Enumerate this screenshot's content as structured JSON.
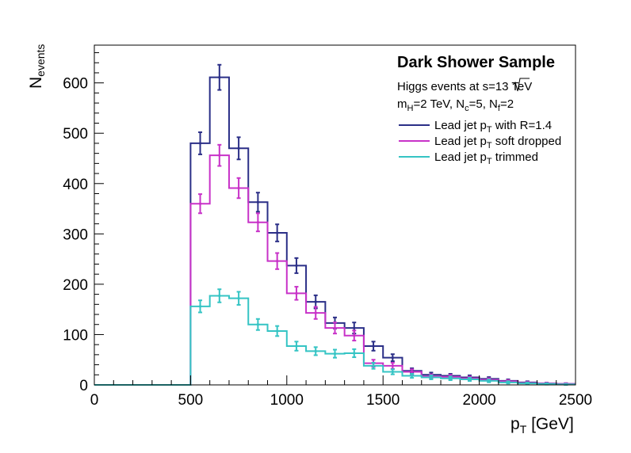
{
  "chart_data": {
    "type": "histogram",
    "title": "",
    "xlabel": {
      "main": "p",
      "sub": "T",
      "unit": " [GeV]"
    },
    "ylabel": {
      "main": "N",
      "sub": "events"
    },
    "xlim": [
      0,
      2500
    ],
    "ylim": [
      0,
      675
    ],
    "xticks": [
      0,
      500,
      1000,
      1500,
      2000,
      2500
    ],
    "yticks": [
      0,
      100,
      200,
      300,
      400,
      500,
      600
    ],
    "grid": false,
    "legend_position": "top-right",
    "legend": {
      "title": "Dark Shower Sample",
      "line1": {
        "pre": "Higgs events at  ",
        "root": "s",
        "post": "=13 TeV"
      },
      "line2": [
        {
          "t": "m"
        },
        {
          "t": "H",
          "sub": true
        },
        {
          "t": "=2 TeV, N"
        },
        {
          "t": "c",
          "sub": true
        },
        {
          "t": "=5, N"
        },
        {
          "t": "f",
          "sub": true
        },
        {
          "t": "=2"
        }
      ]
    },
    "bin_edges": [
      0,
      100,
      200,
      300,
      400,
      500,
      600,
      700,
      800,
      900,
      1000,
      1100,
      1200,
      1300,
      1400,
      1500,
      1600,
      1700,
      1800,
      1900,
      2000,
      2100,
      2200,
      2300,
      2400,
      2500
    ],
    "series": [
      {
        "name_parts": [
          {
            "t": "Lead jet p"
          },
          {
            "t": "T",
            "sub": true
          },
          {
            "t": " with R=1.4"
          }
        ],
        "color": "#2b2f87",
        "values": [
          0,
          0,
          0,
          0,
          0,
          480,
          611,
          470,
          363,
          302,
          237,
          165,
          123,
          113,
          77,
          54,
          28,
          20,
          18,
          15,
          12,
          8,
          5,
          3,
          2
        ],
        "errors": [
          0,
          0,
          0,
          0,
          0,
          22,
          25,
          22,
          19,
          17,
          15,
          13,
          11,
          11,
          9,
          7,
          5,
          4.5,
          4,
          4,
          3.5,
          3,
          2.2,
          1.7,
          1.4
        ]
      },
      {
        "name_parts": [
          {
            "t": "Lead jet p"
          },
          {
            "t": "T",
            "sub": true
          },
          {
            "t": " soft dropped"
          }
        ],
        "color": "#c832c8",
        "values": [
          0,
          0,
          0,
          0,
          0,
          360,
          456,
          391,
          323,
          246,
          182,
          143,
          113,
          98,
          43,
          38,
          26,
          17,
          16,
          13,
          10,
          7,
          4,
          3,
          2
        ],
        "errors": [
          0,
          0,
          0,
          0,
          0,
          19,
          21,
          20,
          18,
          16,
          13,
          12,
          11,
          10,
          7,
          6,
          5,
          4,
          4,
          3.6,
          3.2,
          2.6,
          2,
          1.7,
          1.4
        ]
      },
      {
        "name_parts": [
          {
            "t": "Lead jet p"
          },
          {
            "t": "T",
            "sub": true
          },
          {
            "t": " trimmed"
          }
        ],
        "color": "#35c4c4",
        "values": [
          0,
          0,
          0,
          0,
          0,
          156,
          177,
          172,
          120,
          107,
          77,
          67,
          62,
          63,
          38,
          26,
          18,
          15,
          13,
          11,
          8,
          5,
          3,
          2,
          1
        ],
        "errors": [
          0,
          0,
          0,
          0,
          0,
          12,
          13,
          13,
          11,
          10,
          9,
          8,
          8,
          8,
          6,
          5,
          4,
          3.9,
          3.6,
          3.3,
          2.8,
          2.2,
          1.7,
          1.4,
          1
        ]
      }
    ]
  }
}
